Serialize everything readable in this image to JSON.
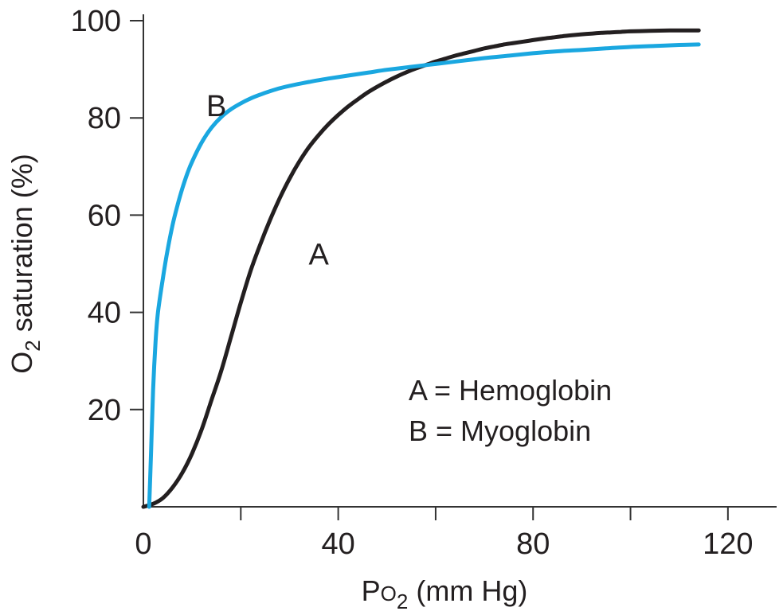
{
  "chart_data": {
    "type": "line",
    "xlabel_main": "P",
    "xlabel_o": "O",
    "xlabel_sub": "2",
    "xlabel_units": " (mm Hg)",
    "ylabel_o": "O",
    "ylabel_sub": "2",
    "ylabel_rest": " saturation (%)",
    "xlim": [
      0,
      130
    ],
    "ylim": [
      0,
      100
    ],
    "x_ticks": [
      0,
      20,
      40,
      60,
      80,
      100,
      120
    ],
    "x_tick_labels": [
      "0",
      "40",
      "80",
      "120"
    ],
    "x_tick_label_values": [
      0,
      40,
      80,
      120
    ],
    "y_ticks": [
      20,
      40,
      60,
      80,
      100
    ],
    "y_tick_labels": [
      "20",
      "40",
      "60",
      "80",
      "100"
    ],
    "series": [
      {
        "name": "A",
        "color": "#231f20",
        "x": [
          0,
          2,
          4,
          6,
          8,
          10,
          12,
          14,
          16,
          18,
          20,
          22,
          24,
          26,
          28,
          30,
          32,
          34,
          36,
          38,
          40,
          42,
          44,
          46,
          48,
          50,
          52,
          54,
          56,
          58,
          60,
          62,
          64,
          66,
          68,
          70,
          72,
          74,
          76,
          78,
          80,
          82,
          84,
          86,
          88,
          90,
          92,
          94,
          96,
          98,
          100,
          102,
          104,
          106,
          108,
          110,
          112,
          114
        ],
        "y": [
          0,
          0.6,
          1.8,
          4,
          7,
          11,
          16,
          22,
          28,
          35,
          42,
          48.5,
          54,
          59,
          63.5,
          67.5,
          71,
          74,
          76.5,
          78.7,
          80.6,
          82.3,
          83.8,
          85.2,
          86.4,
          87.5,
          88.5,
          89.4,
          90.2,
          90.9,
          91.6,
          92.2,
          92.8,
          93.3,
          93.8,
          94.3,
          94.7,
          95.1,
          95.4,
          95.7,
          96,
          96.3,
          96.55,
          96.8,
          97,
          97.2,
          97.35,
          97.5,
          97.6,
          97.7,
          97.8,
          97.85,
          97.9,
          97.95,
          98,
          98,
          98,
          98
        ]
      },
      {
        "name": "B",
        "color": "#1aa7e0",
        "x": [
          1.2,
          1.6,
          2,
          2.5,
          3,
          4,
          5,
          6,
          7,
          8,
          9,
          10,
          12,
          14,
          16,
          18,
          20,
          22,
          24,
          26,
          28,
          30,
          34,
          38,
          42,
          46,
          50,
          55,
          60,
          65,
          70,
          75,
          80,
          85,
          90,
          95,
          100,
          105,
          110,
          114
        ],
        "y": [
          0,
          12,
          24,
          34,
          40,
          47,
          53,
          58,
          62,
          65.5,
          68.5,
          71,
          75,
          78,
          80.2,
          81.8,
          83,
          84,
          84.8,
          85.5,
          86.1,
          86.6,
          87.4,
          88.1,
          88.7,
          89.3,
          89.9,
          90.5,
          91.1,
          91.7,
          92.3,
          92.8,
          93.3,
          93.7,
          94,
          94.3,
          94.6,
          94.8,
          95,
          95.1
        ]
      }
    ],
    "curve_labels": [
      {
        "text": "A",
        "x": 36,
        "y": 52
      },
      {
        "text": "B",
        "x": 15,
        "y": 82.5
      }
    ],
    "legend": [
      "A = Hemoglobin",
      "B = Myoglobin"
    ],
    "grid": false,
    "legend_placement": "bottom-right"
  }
}
